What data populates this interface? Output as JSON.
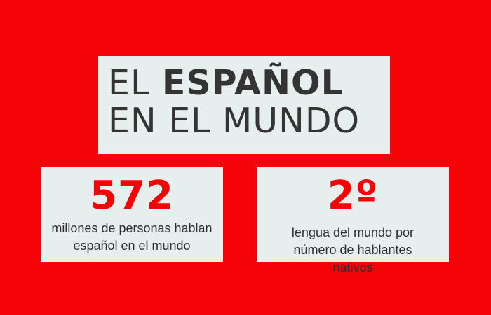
{
  "title": {
    "line1_prefix": "EL",
    "line1_emphasis": "ESPAÑOL",
    "line2": "EN EL MUNDO"
  },
  "stats": [
    {
      "value": "572",
      "description": "millones de personas hablan español en el mundo"
    },
    {
      "value": "2º",
      "description": "lengua del mundo por número de hablantes nativos"
    }
  ],
  "colors": {
    "background": "#f40406",
    "panel": "#e6eeee",
    "accent": "#f40406",
    "text": "#343434"
  }
}
